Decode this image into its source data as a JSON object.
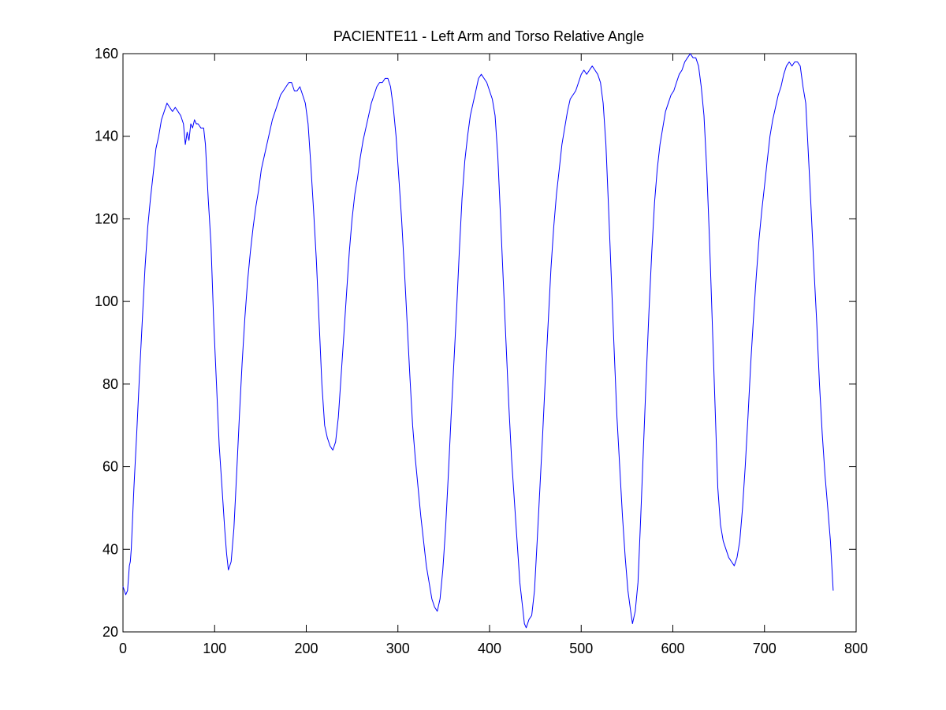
{
  "chart_data": {
    "type": "line",
    "title": "PACIENTE11 - Left Arm and Torso Relative Angle",
    "xlabel": "",
    "ylabel": "",
    "xlim": [
      0,
      800
    ],
    "ylim": [
      20,
      160
    ],
    "xticks": [
      0,
      100,
      200,
      300,
      400,
      500,
      600,
      700,
      800
    ],
    "yticks": [
      20,
      40,
      60,
      80,
      100,
      120,
      140,
      160
    ],
    "xtick_labels": [
      "0",
      "100",
      "200",
      "300",
      "400",
      "500",
      "600",
      "700",
      "800"
    ],
    "ytick_labels": [
      "20",
      "40",
      "60",
      "80",
      "100",
      "120",
      "140",
      "160"
    ],
    "grid": false,
    "legend": "none",
    "series": [
      {
        "color": "#0000ff",
        "points": [
          [
            0,
            31
          ],
          [
            3,
            29
          ],
          [
            5,
            30
          ],
          [
            7,
            36
          ],
          [
            8,
            37
          ],
          [
            9,
            40
          ],
          [
            12,
            55
          ],
          [
            15,
            68
          ],
          [
            18,
            82
          ],
          [
            21,
            95
          ],
          [
            24,
            108
          ],
          [
            27,
            118
          ],
          [
            30,
            125
          ],
          [
            33,
            131
          ],
          [
            36,
            137
          ],
          [
            39,
            140
          ],
          [
            42,
            144
          ],
          [
            45,
            146
          ],
          [
            48,
            148
          ],
          [
            51,
            147
          ],
          [
            54,
            146
          ],
          [
            57,
            147
          ],
          [
            60,
            146
          ],
          [
            63,
            145
          ],
          [
            66,
            143
          ],
          [
            68,
            138
          ],
          [
            70,
            141
          ],
          [
            72,
            139
          ],
          [
            74,
            143
          ],
          [
            76,
            142
          ],
          [
            78,
            144
          ],
          [
            80,
            143
          ],
          [
            82,
            143
          ],
          [
            85,
            142
          ],
          [
            88,
            142
          ],
          [
            90,
            138
          ],
          [
            93,
            125
          ],
          [
            96,
            114
          ],
          [
            99,
            95
          ],
          [
            102,
            80
          ],
          [
            105,
            65
          ],
          [
            108,
            55
          ],
          [
            111,
            45
          ],
          [
            113,
            39
          ],
          [
            115,
            35
          ],
          [
            118,
            37
          ],
          [
            121,
            45
          ],
          [
            124,
            58
          ],
          [
            127,
            72
          ],
          [
            130,
            85
          ],
          [
            133,
            96
          ],
          [
            136,
            105
          ],
          [
            139,
            112
          ],
          [
            142,
            118
          ],
          [
            145,
            123
          ],
          [
            148,
            127
          ],
          [
            151,
            132
          ],
          [
            154,
            135
          ],
          [
            157,
            138
          ],
          [
            160,
            141
          ],
          [
            163,
            144
          ],
          [
            166,
            146
          ],
          [
            169,
            148
          ],
          [
            172,
            150
          ],
          [
            175,
            151
          ],
          [
            178,
            152
          ],
          [
            181,
            153
          ],
          [
            184,
            153
          ],
          [
            187,
            151
          ],
          [
            190,
            151
          ],
          [
            193,
            152
          ],
          [
            196,
            150
          ],
          [
            199,
            148
          ],
          [
            202,
            143
          ],
          [
            205,
            133
          ],
          [
            208,
            122
          ],
          [
            211,
            110
          ],
          [
            214,
            95
          ],
          [
            217,
            80
          ],
          [
            220,
            70
          ],
          [
            223,
            67
          ],
          [
            226,
            65
          ],
          [
            229,
            64
          ],
          [
            232,
            66
          ],
          [
            235,
            72
          ],
          [
            238,
            82
          ],
          [
            241,
            92
          ],
          [
            244,
            102
          ],
          [
            247,
            112
          ],
          [
            250,
            120
          ],
          [
            253,
            126
          ],
          [
            256,
            130
          ],
          [
            259,
            135
          ],
          [
            262,
            139
          ],
          [
            265,
            142
          ],
          [
            268,
            145
          ],
          [
            271,
            148
          ],
          [
            274,
            150
          ],
          [
            277,
            152
          ],
          [
            280,
            153
          ],
          [
            283,
            153
          ],
          [
            286,
            154
          ],
          [
            289,
            154
          ],
          [
            292,
            152
          ],
          [
            295,
            147
          ],
          [
            298,
            140
          ],
          [
            301,
            130
          ],
          [
            304,
            120
          ],
          [
            307,
            108
          ],
          [
            310,
            95
          ],
          [
            313,
            82
          ],
          [
            316,
            70
          ],
          [
            319,
            62
          ],
          [
            322,
            55
          ],
          [
            325,
            48
          ],
          [
            328,
            42
          ],
          [
            331,
            36
          ],
          [
            334,
            32
          ],
          [
            337,
            28
          ],
          [
            340,
            26
          ],
          [
            343,
            25
          ],
          [
            346,
            28
          ],
          [
            349,
            35
          ],
          [
            352,
            45
          ],
          [
            355,
            58
          ],
          [
            358,
            72
          ],
          [
            361,
            85
          ],
          [
            364,
            98
          ],
          [
            367,
            112
          ],
          [
            370,
            125
          ],
          [
            373,
            134
          ],
          [
            376,
            140
          ],
          [
            379,
            145
          ],
          [
            382,
            148
          ],
          [
            385,
            151
          ],
          [
            388,
            154
          ],
          [
            391,
            155
          ],
          [
            394,
            154
          ],
          [
            397,
            153
          ],
          [
            400,
            151
          ],
          [
            403,
            149
          ],
          [
            406,
            145
          ],
          [
            409,
            135
          ],
          [
            412,
            120
          ],
          [
            415,
            105
          ],
          [
            418,
            90
          ],
          [
            421,
            75
          ],
          [
            424,
            62
          ],
          [
            427,
            52
          ],
          [
            430,
            42
          ],
          [
            433,
            32
          ],
          [
            436,
            26
          ],
          [
            438,
            22
          ],
          [
            440,
            21
          ],
          [
            443,
            23
          ],
          [
            446,
            24
          ],
          [
            449,
            30
          ],
          [
            452,
            42
          ],
          [
            455,
            55
          ],
          [
            458,
            68
          ],
          [
            461,
            82
          ],
          [
            464,
            95
          ],
          [
            467,
            108
          ],
          [
            470,
            118
          ],
          [
            473,
            126
          ],
          [
            476,
            132
          ],
          [
            479,
            138
          ],
          [
            482,
            142
          ],
          [
            485,
            146
          ],
          [
            488,
            149
          ],
          [
            491,
            150
          ],
          [
            494,
            151
          ],
          [
            497,
            153
          ],
          [
            500,
            155
          ],
          [
            503,
            156
          ],
          [
            506,
            155
          ],
          [
            509,
            156
          ],
          [
            512,
            157
          ],
          [
            515,
            156
          ],
          [
            518,
            155
          ],
          [
            521,
            153
          ],
          [
            524,
            148
          ],
          [
            527,
            138
          ],
          [
            530,
            122
          ],
          [
            533,
            105
          ],
          [
            536,
            88
          ],
          [
            539,
            72
          ],
          [
            542,
            60
          ],
          [
            545,
            48
          ],
          [
            548,
            38
          ],
          [
            551,
            30
          ],
          [
            554,
            25
          ],
          [
            556,
            22
          ],
          [
            559,
            25
          ],
          [
            562,
            32
          ],
          [
            565,
            48
          ],
          [
            568,
            65
          ],
          [
            571,
            82
          ],
          [
            574,
            98
          ],
          [
            577,
            112
          ],
          [
            580,
            124
          ],
          [
            583,
            132
          ],
          [
            586,
            138
          ],
          [
            589,
            142
          ],
          [
            592,
            146
          ],
          [
            595,
            148
          ],
          [
            598,
            150
          ],
          [
            601,
            151
          ],
          [
            604,
            153
          ],
          [
            607,
            155
          ],
          [
            610,
            156
          ],
          [
            613,
            158
          ],
          [
            616,
            159
          ],
          [
            619,
            160
          ],
          [
            622,
            159
          ],
          [
            625,
            159
          ],
          [
            628,
            157
          ],
          [
            631,
            152
          ],
          [
            634,
            145
          ],
          [
            637,
            132
          ],
          [
            640,
            115
          ],
          [
            643,
            95
          ],
          [
            646,
            75
          ],
          [
            649,
            55
          ],
          [
            652,
            46
          ],
          [
            655,
            42
          ],
          [
            658,
            40
          ],
          [
            661,
            38
          ],
          [
            664,
            37
          ],
          [
            667,
            36
          ],
          [
            670,
            38
          ],
          [
            673,
            42
          ],
          [
            676,
            50
          ],
          [
            679,
            60
          ],
          [
            682,
            72
          ],
          [
            685,
            85
          ],
          [
            688,
            96
          ],
          [
            691,
            106
          ],
          [
            694,
            115
          ],
          [
            697,
            122
          ],
          [
            700,
            128
          ],
          [
            703,
            134
          ],
          [
            706,
            140
          ],
          [
            709,
            144
          ],
          [
            712,
            147
          ],
          [
            715,
            150
          ],
          [
            718,
            152
          ],
          [
            721,
            155
          ],
          [
            724,
            157
          ],
          [
            727,
            158
          ],
          [
            730,
            157
          ],
          [
            733,
            158
          ],
          [
            736,
            158
          ],
          [
            739,
            157
          ],
          [
            742,
            152
          ],
          [
            745,
            148
          ],
          [
            748,
            135
          ],
          [
            751,
            122
          ],
          [
            754,
            108
          ],
          [
            757,
            95
          ],
          [
            760,
            80
          ],
          [
            763,
            68
          ],
          [
            766,
            58
          ],
          [
            769,
            50
          ],
          [
            772,
            42
          ],
          [
            775,
            30
          ]
        ]
      }
    ]
  }
}
